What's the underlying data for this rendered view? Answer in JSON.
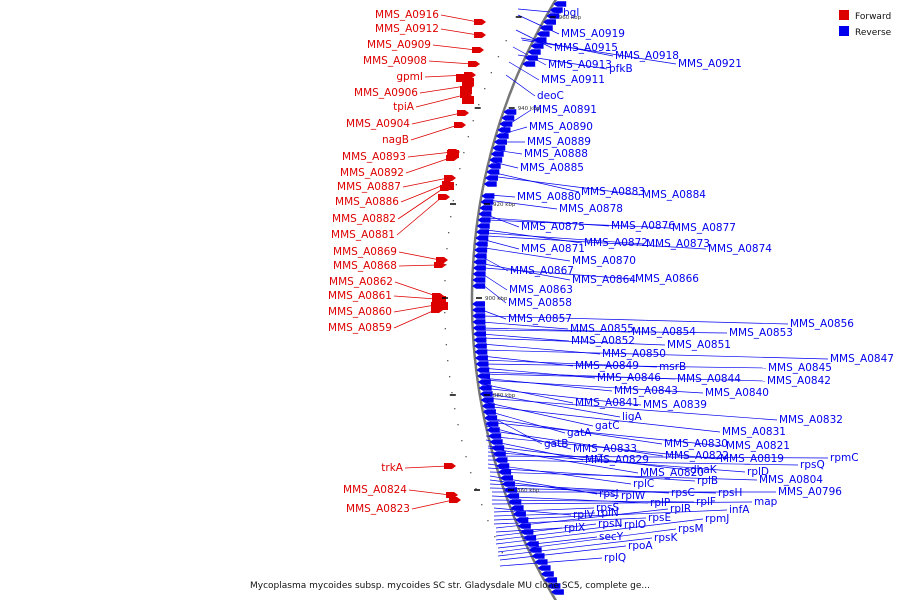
{
  "caption": "Mycoplasma mycoides subsp. mycoides SC str. Gladysdale MU clone SC5, complete ge...",
  "colors": {
    "forward": "#dd0000",
    "reverse": "#0000ee",
    "backbone": "#777777"
  },
  "legend": [
    {
      "label": "Forward",
      "color": "#dd0000"
    },
    {
      "label": "Reverse",
      "color": "#0000ee"
    }
  ],
  "ticks": [
    "960 kbp",
    "940 kbp",
    "920 kbp",
    "900 kbp",
    "880 kbp",
    "860 kbp"
  ],
  "forward_genes": [
    "MMS_A0916",
    "MMS_A0912",
    "MMS_A0909",
    "MMS_A0908",
    "gpmI",
    "MMS_A0906",
    "tpiA",
    "MMS_A0904",
    "nagB",
    "MMS_A0893",
    "MMS_A0892",
    "MMS_A0887",
    "MMS_A0886",
    "MMS_A0882",
    "MMS_A0881",
    "MMS_A0869",
    "MMS_A0868",
    "MMS_A0862",
    "MMS_A0861",
    "MMS_A0860",
    "MMS_A0859",
    "trkA",
    "MMS_A0824",
    "MMS_A0823"
  ],
  "reverse_genes": [
    "bgl",
    "MMS_A0919",
    "MMS_A0915",
    "MMS_A0918",
    "MMS_A0921",
    "MMS_A0913",
    "pfkB",
    "MMS_A0911",
    "deoC",
    "MMS_A0891",
    "MMS_A0890",
    "MMS_A0889",
    "MMS_A0888",
    "MMS_A0885",
    "MMS_A0883",
    "MMS_A0884",
    "MMS_A0880",
    "MMS_A0878",
    "MMS_A0875",
    "MMS_A0876",
    "MMS_A0877",
    "MMS_A0872",
    "MMS_A0873",
    "MMS_A0874",
    "MMS_A0871",
    "MMS_A0870",
    "MMS_A0867",
    "MMS_A0864",
    "MMS_A0866",
    "MMS_A0863",
    "MMS_A0858",
    "MMS_A0857",
    "MMS_A0856",
    "MMS_A0855",
    "MMS_A0854",
    "MMS_A0853",
    "MMS_A0852",
    "MMS_A0851",
    "MMS_A0850",
    "MMS_A0847",
    "MMS_A0849",
    "msrB",
    "MMS_A0845",
    "MMS_A0846",
    "MMS_A0844",
    "MMS_A0842",
    "MMS_A0843",
    "MMS_A0840",
    "MMS_A0841",
    "MMS_A0839",
    "ligA",
    "MMS_A0832",
    "gatC",
    "MMS_A0831",
    "gatA",
    "gatB",
    "MMS_A0830",
    "MMS_A0821",
    "MMS_A0833",
    "MMS_A0822",
    "MMS_A0819",
    "MMS_A0829",
    "dhaK",
    "MMS_A0820",
    "rplD",
    "rpmC",
    "rpsQ",
    "rplC",
    "rplB",
    "MMS_A0804",
    "rpsJ",
    "rplW",
    "rpsC",
    "rpsH",
    "MMS_A0796",
    "rplP",
    "rplF",
    "map",
    "rplV",
    "rpsS",
    "rplN",
    "infA",
    "rpsE",
    "rplR",
    "rplX",
    "rpsN",
    "rplO",
    "rpmJ",
    "secY",
    "rpsM",
    "rpsK",
    "rpoA",
    "rplQ"
  ]
}
